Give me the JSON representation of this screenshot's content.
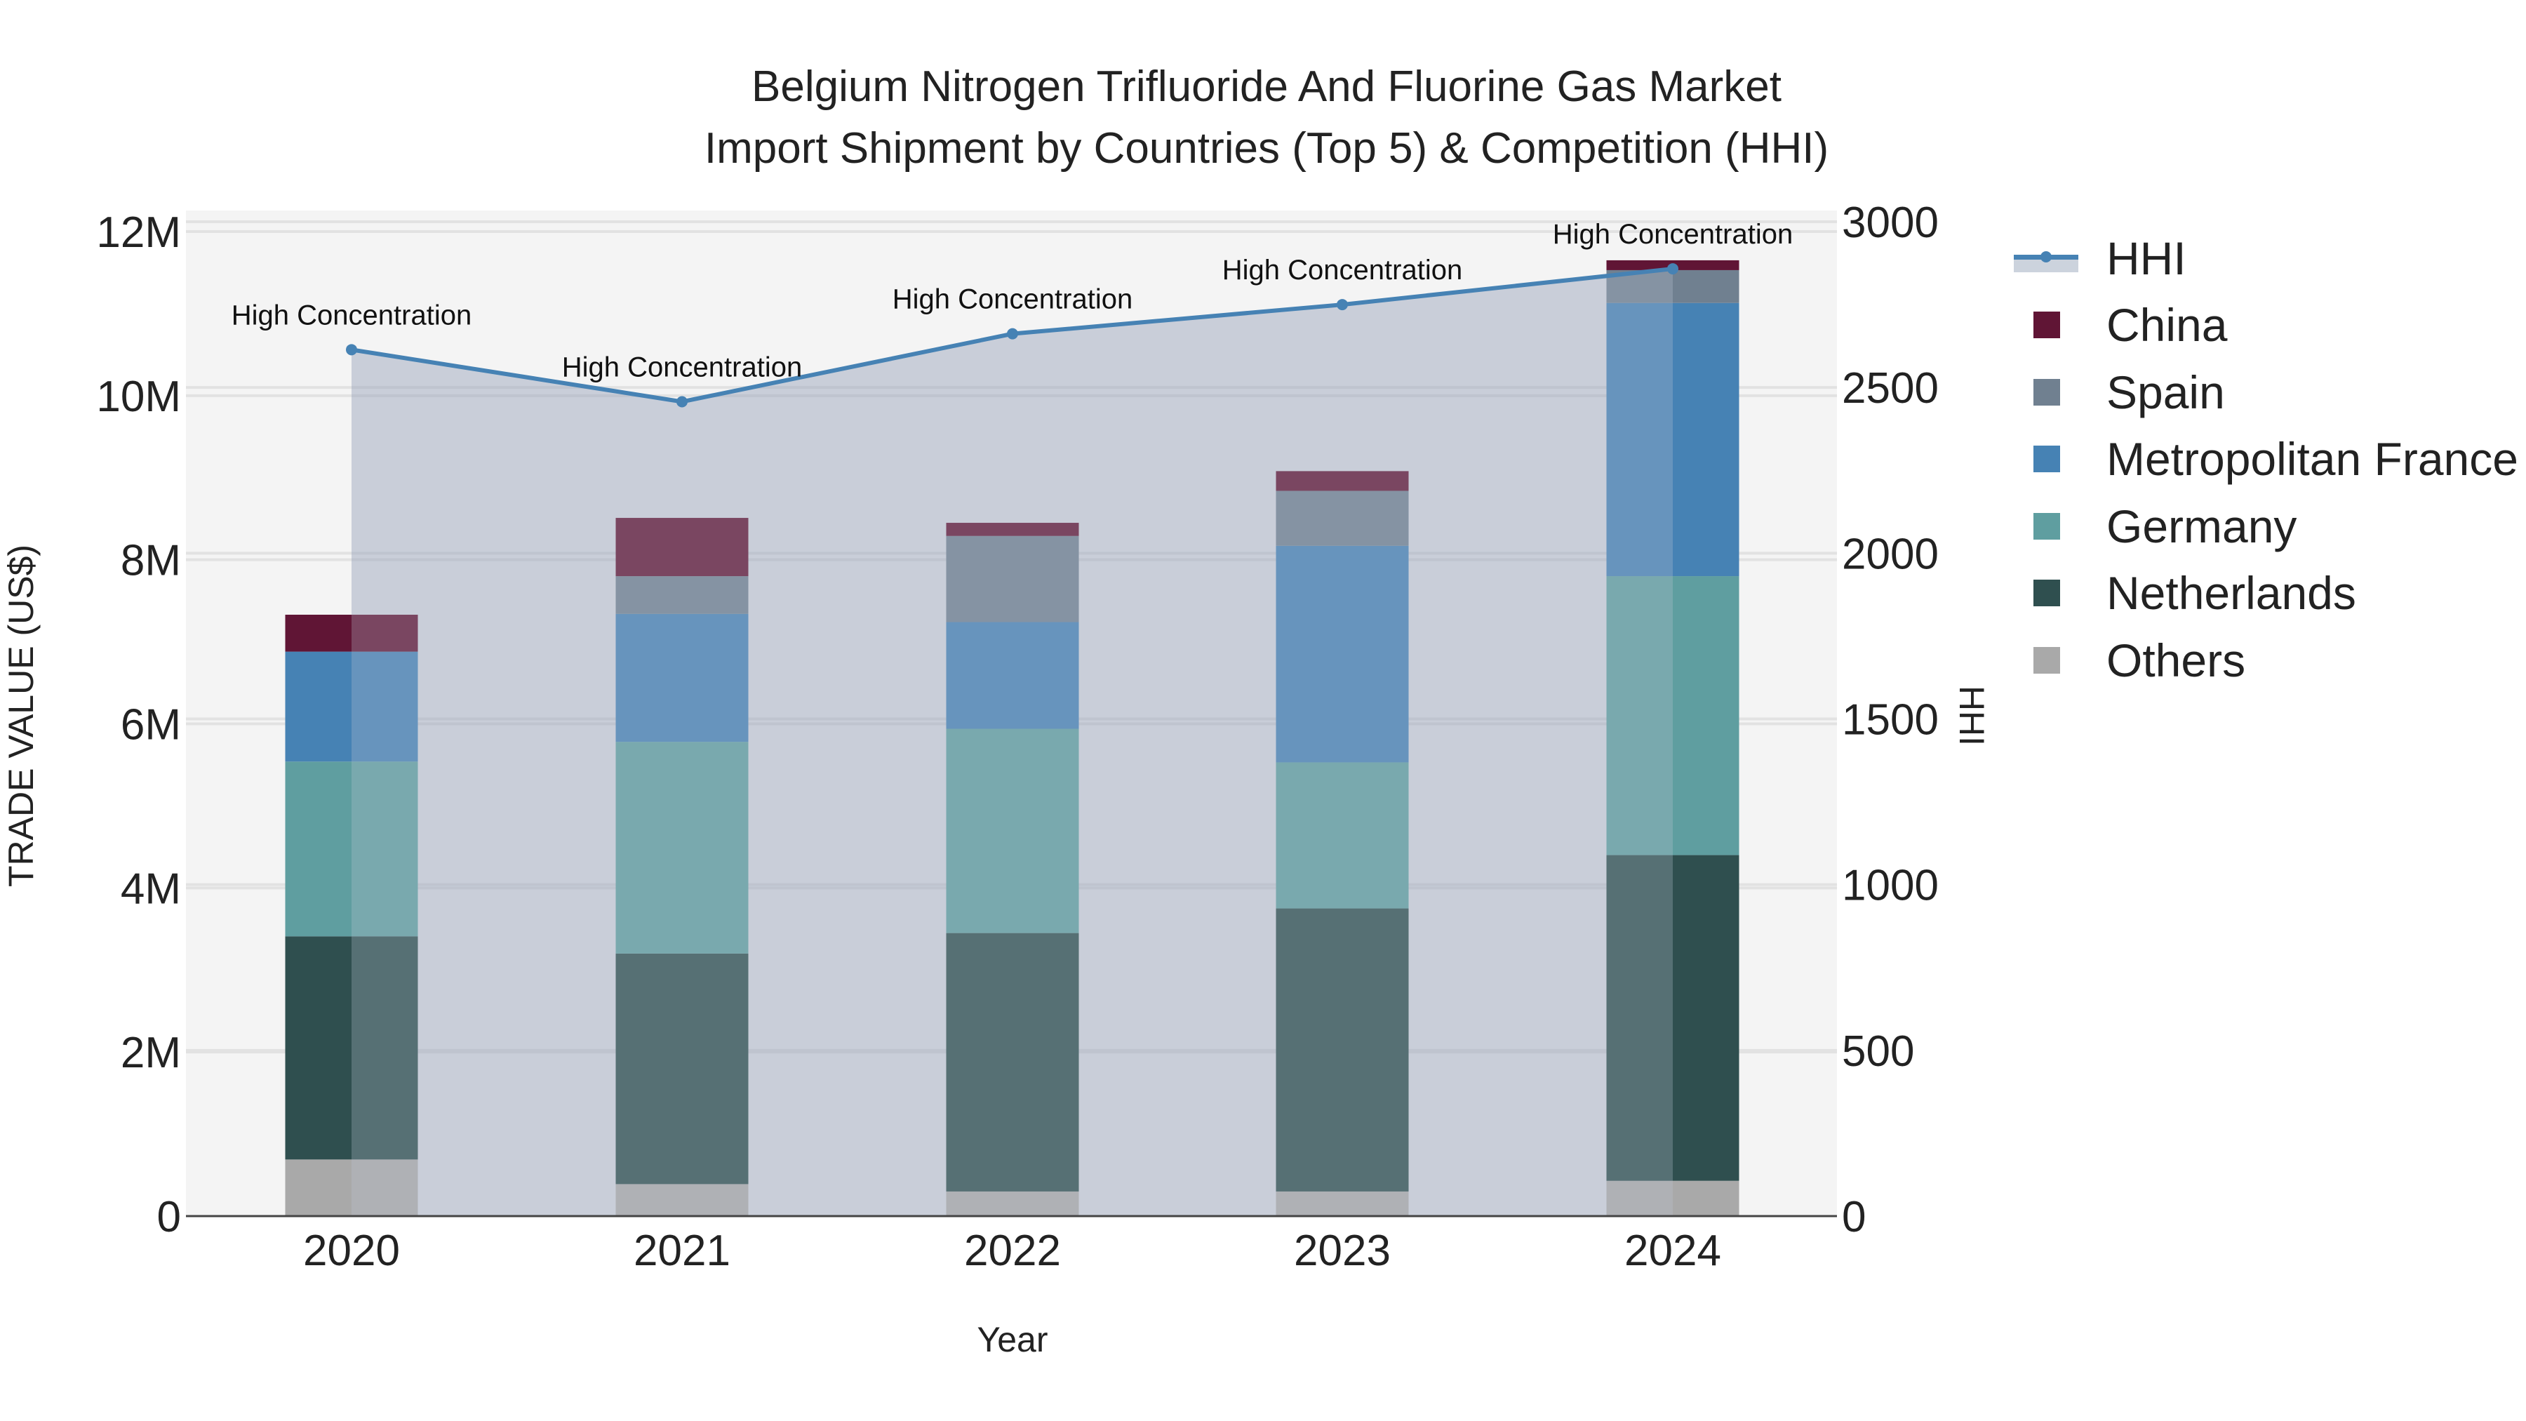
{
  "chart_data": {
    "type": "bar",
    "title": "Belgium Nitrogen Trifluoride And Fluorine Gas Market",
    "subtitle": "Import Shipment by Countries (Top 5) & Competition (HHI)",
    "xlabel": "Year",
    "ylabel": "TRADE VALUE (US$)",
    "y2label": "HHI",
    "categories": [
      "2020",
      "2021",
      "2022",
      "2023",
      "2024"
    ],
    "ylim": [
      0,
      12200000
    ],
    "y2lim": [
      0,
      3050
    ],
    "yticks": [
      0,
      2000000,
      4000000,
      6000000,
      8000000,
      10000000,
      12000000
    ],
    "yticklabels": [
      "0",
      "2M",
      "4M",
      "6M",
      "8M",
      "10M",
      "12M"
    ],
    "y2ticks": [
      0,
      500,
      1000,
      1500,
      2000,
      2500,
      3000
    ],
    "y2ticklabels": [
      "0",
      "500",
      "1000",
      "1500",
      "2000",
      "2500",
      "3000"
    ],
    "barmode": "stack",
    "grid": true,
    "legend_position": "right",
    "series": [
      {
        "name": "Others",
        "color": "#a9a9a9",
        "values": [
          690000,
          390000,
          300000,
          300000,
          430000
        ]
      },
      {
        "name": "Netherlands",
        "color": "#2f4f4f",
        "values": [
          2720000,
          2810000,
          3150000,
          3450000,
          3970000
        ]
      },
      {
        "name": "Germany",
        "color": "#5f9ea0",
        "values": [
          2130000,
          2580000,
          2490000,
          1780000,
          3400000
        ]
      },
      {
        "name": "Metropolitan France",
        "color": "#4682b4",
        "values": [
          1340000,
          1560000,
          1300000,
          2640000,
          3330000
        ]
      },
      {
        "name": "Spain",
        "color": "#708090",
        "values": [
          0,
          460000,
          1050000,
          670000,
          400000
        ]
      },
      {
        "name": "China",
        "color": "#601535",
        "values": [
          450000,
          710000,
          160000,
          240000,
          120000
        ]
      }
    ],
    "line_series": {
      "name": "HHI",
      "axis": "y2",
      "color": "#4682b4",
      "fill": "tozeroy",
      "values": [
        2614,
        2457,
        2662,
        2750,
        2858
      ],
      "annotations": [
        "High Concentration",
        "High Concentration",
        "High Concentration",
        "High Concentration",
        "High Concentration"
      ]
    }
  },
  "legend": {
    "items": [
      {
        "label": "HHI"
      },
      {
        "label": "China"
      },
      {
        "label": "Spain"
      },
      {
        "label": "Metropolitan France"
      },
      {
        "label": "Germany"
      },
      {
        "label": "Netherlands"
      },
      {
        "label": "Others"
      }
    ]
  }
}
